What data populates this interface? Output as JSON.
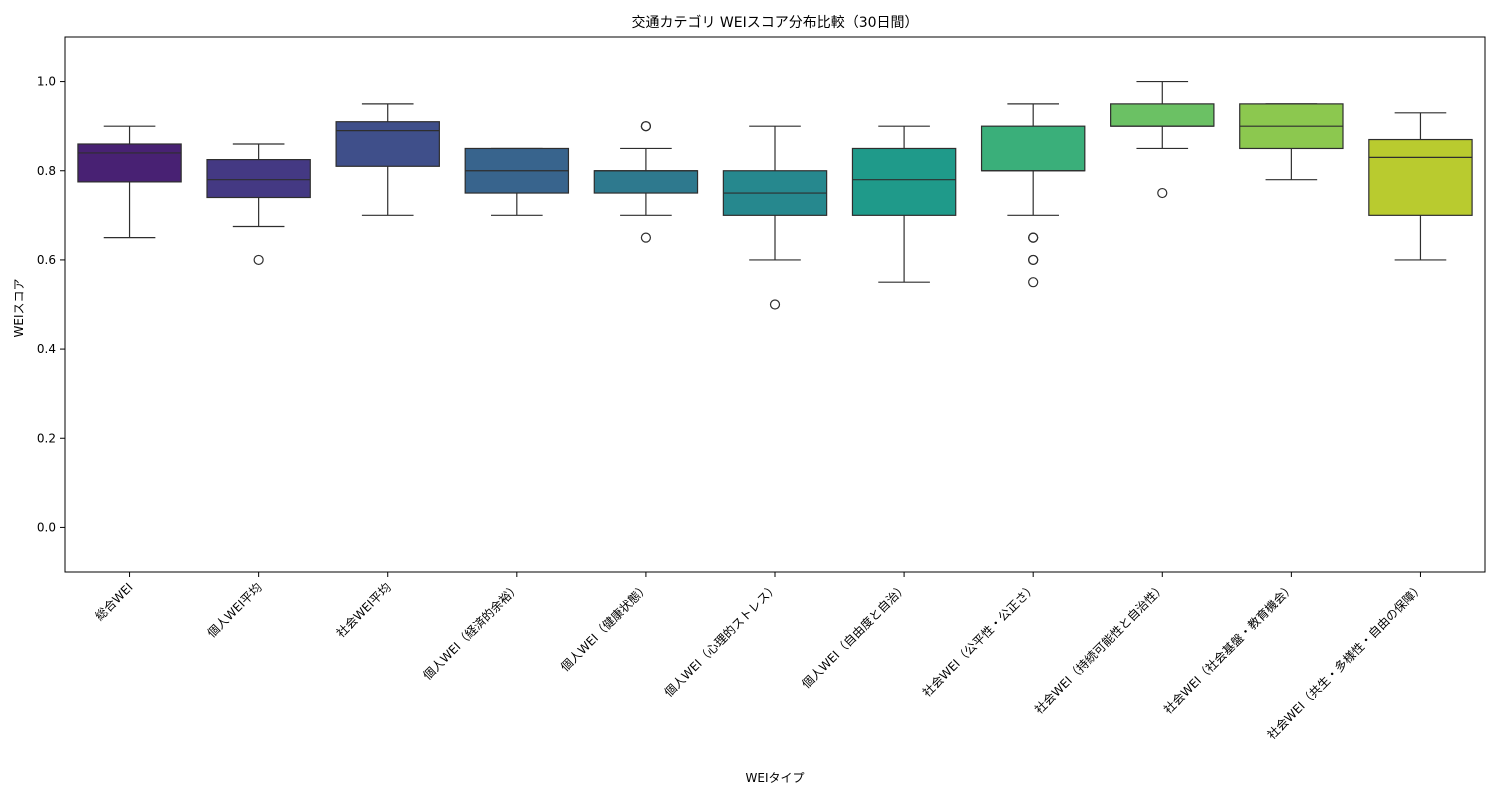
{
  "chart_data": {
    "type": "box",
    "title": "交通カテゴリ WEIスコア分布比較（30日間）",
    "xlabel": "WEIタイプ",
    "ylabel": "WEIスコア",
    "ylim": [
      -0.1,
      1.1
    ],
    "yticks": [
      0.0,
      0.2,
      0.4,
      0.6,
      0.8,
      1.0
    ],
    "ytick_labels": [
      "0.0",
      "0.2",
      "0.4",
      "0.6",
      "0.8",
      "1.0"
    ],
    "grid": false,
    "legend": "none",
    "categories": [
      "総合WEI",
      "個人WEI平均",
      "社会WEI平均",
      "個人WEI（経済的余裕）",
      "個人WEI（健康状態）",
      "個人WEI（心理的ストレス）",
      "個人WEI（自由度と自治）",
      "社会WEI（公平性・公正さ）",
      "社会WEI（持続可能性と自治性）",
      "社会WEI（社会基盤・教育機会）",
      "社会WEI（共生・多様性・自由の保障）"
    ],
    "boxes": [
      {
        "whisker_low": 0.65,
        "q1": 0.775,
        "median": 0.84,
        "q3": 0.86,
        "whisker_high": 0.9,
        "outliers": [],
        "color": "#482173"
      },
      {
        "whisker_low": 0.675,
        "q1": 0.74,
        "median": 0.78,
        "q3": 0.825,
        "whisker_high": 0.86,
        "outliers": [
          0.6
        ],
        "color": "#443983"
      },
      {
        "whisker_low": 0.7,
        "q1": 0.81,
        "median": 0.89,
        "q3": 0.91,
        "whisker_high": 0.95,
        "outliers": [],
        "color": "#3f4f8a"
      },
      {
        "whisker_low": 0.7,
        "q1": 0.75,
        "median": 0.8,
        "q3": 0.85,
        "whisker_high": 0.85,
        "outliers": [],
        "color": "#38648d"
      },
      {
        "whisker_low": 0.7,
        "q1": 0.75,
        "median": 0.8,
        "q3": 0.8,
        "whisker_high": 0.85,
        "outliers": [
          0.65,
          0.9,
          0.9
        ],
        "color": "#2e798e"
      },
      {
        "whisker_low": 0.6,
        "q1": 0.7,
        "median": 0.75,
        "q3": 0.8,
        "whisker_high": 0.9,
        "outliers": [
          0.5
        ],
        "color": "#26888e"
      },
      {
        "whisker_low": 0.55,
        "q1": 0.7,
        "median": 0.78,
        "q3": 0.85,
        "whisker_high": 0.9,
        "outliers": [],
        "color": "#1f9a8a"
      },
      {
        "whisker_low": 0.7,
        "q1": 0.8,
        "median": 0.8,
        "q3": 0.9,
        "whisker_high": 0.95,
        "outliers": [
          0.55,
          0.6,
          0.6,
          0.65,
          0.65
        ],
        "color": "#3aaf7a"
      },
      {
        "whisker_low": 0.85,
        "q1": 0.9,
        "median": 0.9,
        "q3": 0.95,
        "whisker_high": 1.0,
        "outliers": [
          0.75
        ],
        "color": "#6bc164"
      },
      {
        "whisker_low": 0.78,
        "q1": 0.85,
        "median": 0.9,
        "q3": 0.95,
        "whisker_high": 0.95,
        "outliers": [],
        "color": "#8cc84f"
      },
      {
        "whisker_low": 0.6,
        "q1": 0.7,
        "median": 0.83,
        "q3": 0.87,
        "whisker_high": 0.93,
        "outliers": [],
        "color": "#b9cb2f"
      }
    ]
  }
}
